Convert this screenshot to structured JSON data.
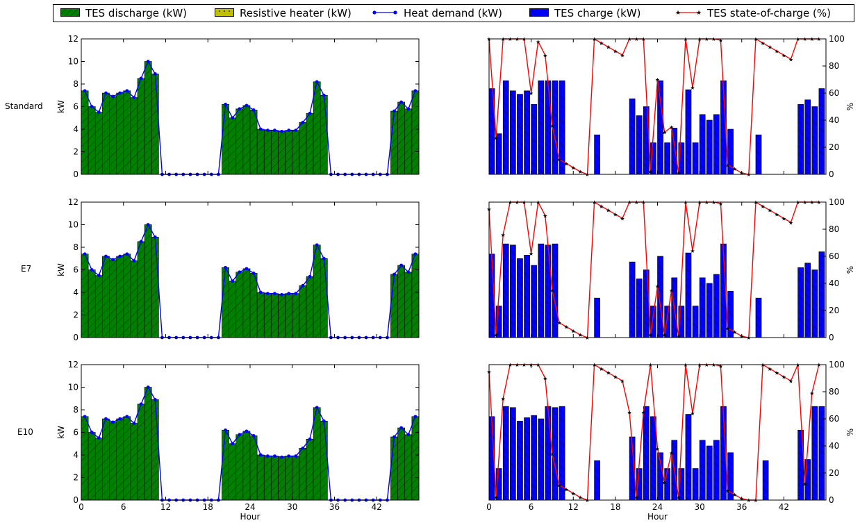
{
  "legend": [
    {
      "key": "discharge",
      "label": "TES discharge (kW)"
    },
    {
      "key": "resistive",
      "label": "Resistive heater (kW)"
    },
    {
      "key": "demand",
      "label": "Heat demand (kW)"
    },
    {
      "key": "charge",
      "label": "TES charge (kW)"
    },
    {
      "key": "soc",
      "label": "TES state-of-charge (%)"
    }
  ],
  "colors": {
    "discharge": "#008000",
    "resistive": "#bfbf00",
    "demand": "#0000ff",
    "charge": "#0000ff",
    "soc": "#ff0000",
    "axis": "#000000"
  },
  "chart_data": {
    "type": "bar",
    "x_ticks": [
      0,
      6,
      12,
      18,
      24,
      30,
      36,
      42
    ],
    "xlabel": "Hour",
    "left_ylabel": "kW",
    "left_ylim": [
      0,
      12
    ],
    "left_yticks": [
      0,
      2,
      4,
      6,
      8,
      10,
      12
    ],
    "right_ylabel": "%",
    "right_ylim": [
      0,
      100
    ],
    "right_yticks": [
      0,
      20,
      40,
      60,
      80,
      100
    ],
    "grid": false,
    "legend_position": "top",
    "scenarios": [
      {
        "name": "Standard",
        "heat_demand": [
          7.4,
          6.0,
          5.5,
          7.2,
          6.9,
          7.2,
          7.4,
          6.8,
          8.5,
          10.0,
          8.9,
          0,
          0,
          0,
          0,
          0,
          0,
          0,
          0,
          0,
          6.2,
          5.0,
          5.8,
          6.1,
          5.7,
          4.0,
          3.9,
          3.9,
          3.8,
          3.9,
          3.9,
          4.6,
          5.4,
          8.2,
          7.0,
          0,
          0,
          0,
          0,
          0,
          0,
          0,
          0,
          0,
          5.6,
          6.4,
          5.8,
          7.4
        ],
        "tes_discharge": [
          7.4,
          6.0,
          5.5,
          7.2,
          6.9,
          7.2,
          7.4,
          6.8,
          8.5,
          10.0,
          8.9,
          0,
          0,
          0,
          0,
          0,
          0,
          0,
          0,
          0,
          6.2,
          5.0,
          5.8,
          6.1,
          5.7,
          4.0,
          3.9,
          3.9,
          3.8,
          3.9,
          3.9,
          4.6,
          5.4,
          8.2,
          7.0,
          0,
          0,
          0,
          0,
          0,
          0,
          0,
          0,
          0,
          5.6,
          6.4,
          5.8,
          7.4
        ],
        "resistive_heater": [
          0,
          0,
          0,
          0,
          0,
          0,
          0,
          0,
          0,
          0,
          0,
          0,
          0,
          0,
          0,
          0,
          0,
          0,
          0,
          0,
          0,
          0,
          0,
          0,
          0,
          0,
          0,
          0,
          0,
          0,
          0,
          0,
          0,
          0,
          0,
          0,
          0,
          0,
          0,
          0,
          0,
          0,
          0,
          0,
          0,
          0,
          0,
          0
        ],
        "tes_charge": [
          7.6,
          3.6,
          8.3,
          7.4,
          7.1,
          7.4,
          6.2,
          8.3,
          8.3,
          8.3,
          8.3,
          0,
          0,
          0,
          0,
          3.5,
          0,
          0,
          0,
          0,
          6.7,
          5.2,
          6.0,
          2.8,
          8.3,
          2.8,
          4.1,
          2.8,
          7.5,
          2.8,
          5.3,
          4.8,
          5.3,
          8.3,
          4.0,
          0,
          0,
          0,
          3.5,
          0,
          0,
          0,
          0,
          0,
          6.2,
          6.6,
          6.0,
          7.6
        ],
        "soc": [
          100,
          27,
          100,
          100,
          100,
          100,
          60,
          98,
          88,
          36,
          11,
          8,
          5,
          2,
          0,
          100,
          97,
          94,
          91,
          88,
          100,
          100,
          100,
          2,
          70,
          31,
          35,
          1,
          100,
          64,
          100,
          100,
          100,
          99,
          7,
          4,
          1,
          0,
          100,
          97,
          94,
          91,
          88,
          85,
          100,
          100,
          100,
          100
        ]
      },
      {
        "name": "E7",
        "heat_demand": [
          7.4,
          6.0,
          5.5,
          7.2,
          6.9,
          7.2,
          7.4,
          6.8,
          8.5,
          10.0,
          8.9,
          0,
          0,
          0,
          0,
          0,
          0,
          0,
          0,
          0,
          6.2,
          5.0,
          5.8,
          6.1,
          5.7,
          4.0,
          3.9,
          3.9,
          3.8,
          3.9,
          3.9,
          4.6,
          5.4,
          8.2,
          7.0,
          0,
          0,
          0,
          0,
          0,
          0,
          0,
          0,
          0,
          5.6,
          6.4,
          5.8,
          7.4
        ],
        "tes_discharge": [
          7.4,
          6.0,
          5.5,
          7.2,
          6.9,
          7.2,
          7.4,
          6.8,
          8.5,
          10.0,
          8.9,
          0,
          0,
          0,
          0,
          0,
          0,
          0,
          0,
          0,
          6.2,
          5.0,
          5.8,
          6.1,
          5.7,
          4.0,
          3.9,
          3.9,
          3.8,
          3.9,
          3.9,
          4.6,
          5.4,
          8.2,
          7.0,
          0,
          0,
          0,
          0,
          0,
          0,
          0,
          0,
          0,
          5.6,
          6.4,
          5.8,
          7.4
        ],
        "resistive_heater": [
          0,
          0,
          0,
          0,
          0,
          0,
          0,
          0,
          0,
          0,
          0,
          0,
          0,
          0,
          0,
          0,
          0,
          0,
          0,
          0,
          0,
          0,
          0,
          0,
          0,
          0,
          0,
          0,
          0,
          0,
          0,
          0,
          0,
          0,
          0,
          0,
          0,
          0,
          0,
          0,
          0,
          0,
          0,
          0,
          0,
          0,
          0,
          0
        ],
        "tes_charge": [
          7.4,
          2.8,
          8.3,
          8.2,
          7.0,
          7.3,
          6.4,
          8.3,
          8.2,
          8.3,
          0,
          0,
          0,
          0,
          0,
          3.5,
          0,
          0,
          0,
          0,
          6.7,
          5.2,
          6.0,
          2.8,
          7.2,
          2.8,
          5.3,
          2.8,
          7.5,
          2.8,
          5.3,
          4.8,
          5.6,
          8.3,
          4.1,
          0,
          0,
          0,
          3.5,
          0,
          0,
          0,
          0,
          0,
          6.2,
          6.6,
          6.0,
          7.6
        ],
        "soc": [
          95,
          2,
          76,
          100,
          100,
          100,
          62,
          100,
          90,
          35,
          11,
          8,
          5,
          2,
          0,
          100,
          97,
          94,
          91,
          88,
          100,
          100,
          100,
          2,
          38,
          2,
          35,
          1,
          100,
          64,
          100,
          100,
          100,
          99,
          7,
          4,
          1,
          0,
          100,
          97,
          94,
          91,
          88,
          85,
          100,
          100,
          100,
          100
        ]
      },
      {
        "name": "E10",
        "heat_demand": [
          7.4,
          6.0,
          5.5,
          7.2,
          6.9,
          7.2,
          7.4,
          6.8,
          8.5,
          10.0,
          8.9,
          0,
          0,
          0,
          0,
          0,
          0,
          0,
          0,
          0,
          6.2,
          5.0,
          5.8,
          6.1,
          5.7,
          4.0,
          3.9,
          3.9,
          3.8,
          3.9,
          3.9,
          4.6,
          5.4,
          8.2,
          7.0,
          0,
          0,
          0,
          0,
          0,
          0,
          0,
          0,
          0,
          5.6,
          6.4,
          5.8,
          7.4
        ],
        "tes_discharge": [
          7.4,
          6.0,
          5.5,
          7.2,
          6.9,
          7.2,
          7.4,
          6.8,
          8.5,
          10.0,
          8.9,
          0,
          0,
          0,
          0,
          0,
          0,
          0,
          0,
          0,
          6.2,
          5.0,
          5.8,
          6.1,
          5.7,
          4.0,
          3.9,
          3.9,
          3.8,
          3.9,
          3.9,
          4.6,
          5.4,
          8.2,
          7.0,
          0,
          0,
          0,
          0,
          0,
          0,
          0,
          0,
          0,
          5.6,
          6.4,
          5.8,
          7.4
        ],
        "resistive_heater": [
          0,
          0,
          0,
          0,
          0,
          0,
          0,
          0,
          0,
          0,
          0,
          0,
          0,
          0,
          0,
          0,
          0,
          0,
          0,
          0,
          0,
          0,
          0,
          0,
          0,
          0,
          0,
          0,
          0,
          0,
          0,
          0,
          0,
          0,
          0,
          0,
          0,
          0,
          0,
          0,
          0,
          0,
          0,
          0,
          0,
          0,
          0,
          0
        ],
        "tes_charge": [
          7.4,
          2.8,
          8.3,
          8.2,
          7.0,
          7.3,
          7.5,
          7.2,
          8.3,
          8.2,
          8.3,
          0,
          0,
          0,
          0,
          3.5,
          0,
          0,
          0,
          0,
          5.6,
          2.8,
          8.3,
          7.4,
          4.2,
          2.8,
          5.3,
          2.8,
          7.6,
          2.8,
          5.3,
          4.8,
          5.3,
          8.3,
          4.2,
          0,
          0,
          0,
          0,
          3.5,
          0,
          0,
          0,
          0,
          6.2,
          3.6,
          8.3,
          8.3
        ],
        "soc": [
          95,
          2,
          75,
          100,
          100,
          100,
          100,
          100,
          90,
          34,
          11,
          8,
          5,
          2,
          0,
          100,
          97,
          94,
          91,
          88,
          65,
          2,
          65,
          100,
          38,
          13,
          35,
          2,
          100,
          64,
          100,
          100,
          100,
          99,
          7,
          4,
          1,
          0,
          0,
          100,
          97,
          94,
          91,
          88,
          100,
          12,
          79,
          100
        ]
      }
    ]
  }
}
